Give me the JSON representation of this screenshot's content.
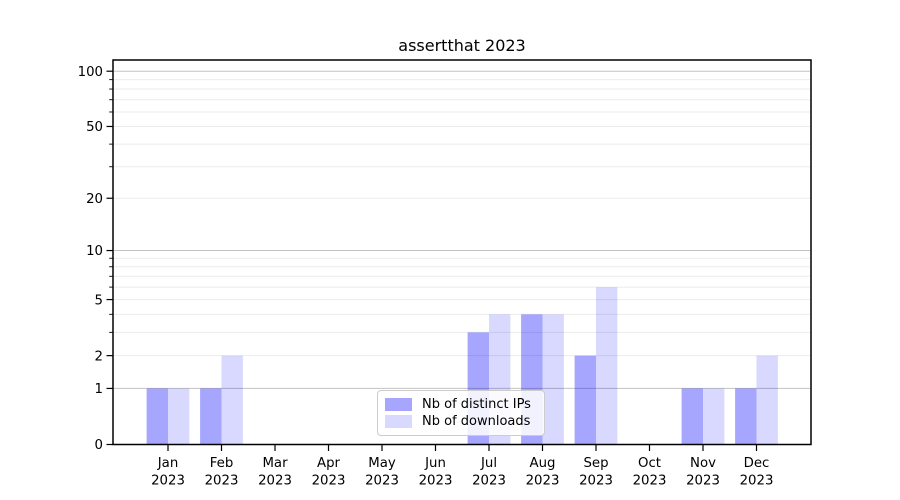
{
  "chart_data": {
    "type": "bar",
    "title": "assertthat 2023",
    "yscale": "log1p",
    "grid": "horizontal",
    "legend_position": "lower-center-inside",
    "categories": [
      "Jan",
      "Feb",
      "Mar",
      "Apr",
      "May",
      "Jun",
      "Jul",
      "Aug",
      "Sep",
      "Oct",
      "Nov",
      "Dec"
    ],
    "category_year": "2023",
    "series": [
      {
        "name": "Nb of distinct IPs",
        "color": "rgba(0,0,255,0.35)",
        "values": [
          1,
          1,
          0,
          0,
          0,
          0,
          3,
          4,
          2,
          0,
          1,
          1
        ]
      },
      {
        "name": "Nb of downloads",
        "color": "rgba(0,0,255,0.15)",
        "values": [
          1,
          2,
          0,
          0,
          0,
          0,
          4,
          4,
          6,
          0,
          1,
          2
        ]
      }
    ],
    "xlabel": "",
    "ylabel": "",
    "ylim": [
      0,
      115
    ],
    "y_ticks": [
      0,
      1,
      2,
      5,
      10,
      20,
      50,
      100
    ],
    "y_minor_ticks": [
      3,
      4,
      6,
      7,
      8,
      9,
      30,
      40,
      60,
      70,
      80,
      90
    ],
    "y_major_gridlines": [
      1,
      10,
      100
    ],
    "colors": {
      "spine": "#000000",
      "major_grid": "#c3c3c3",
      "minor_grid": "#ebebeb",
      "tick_label": "#000000"
    }
  }
}
